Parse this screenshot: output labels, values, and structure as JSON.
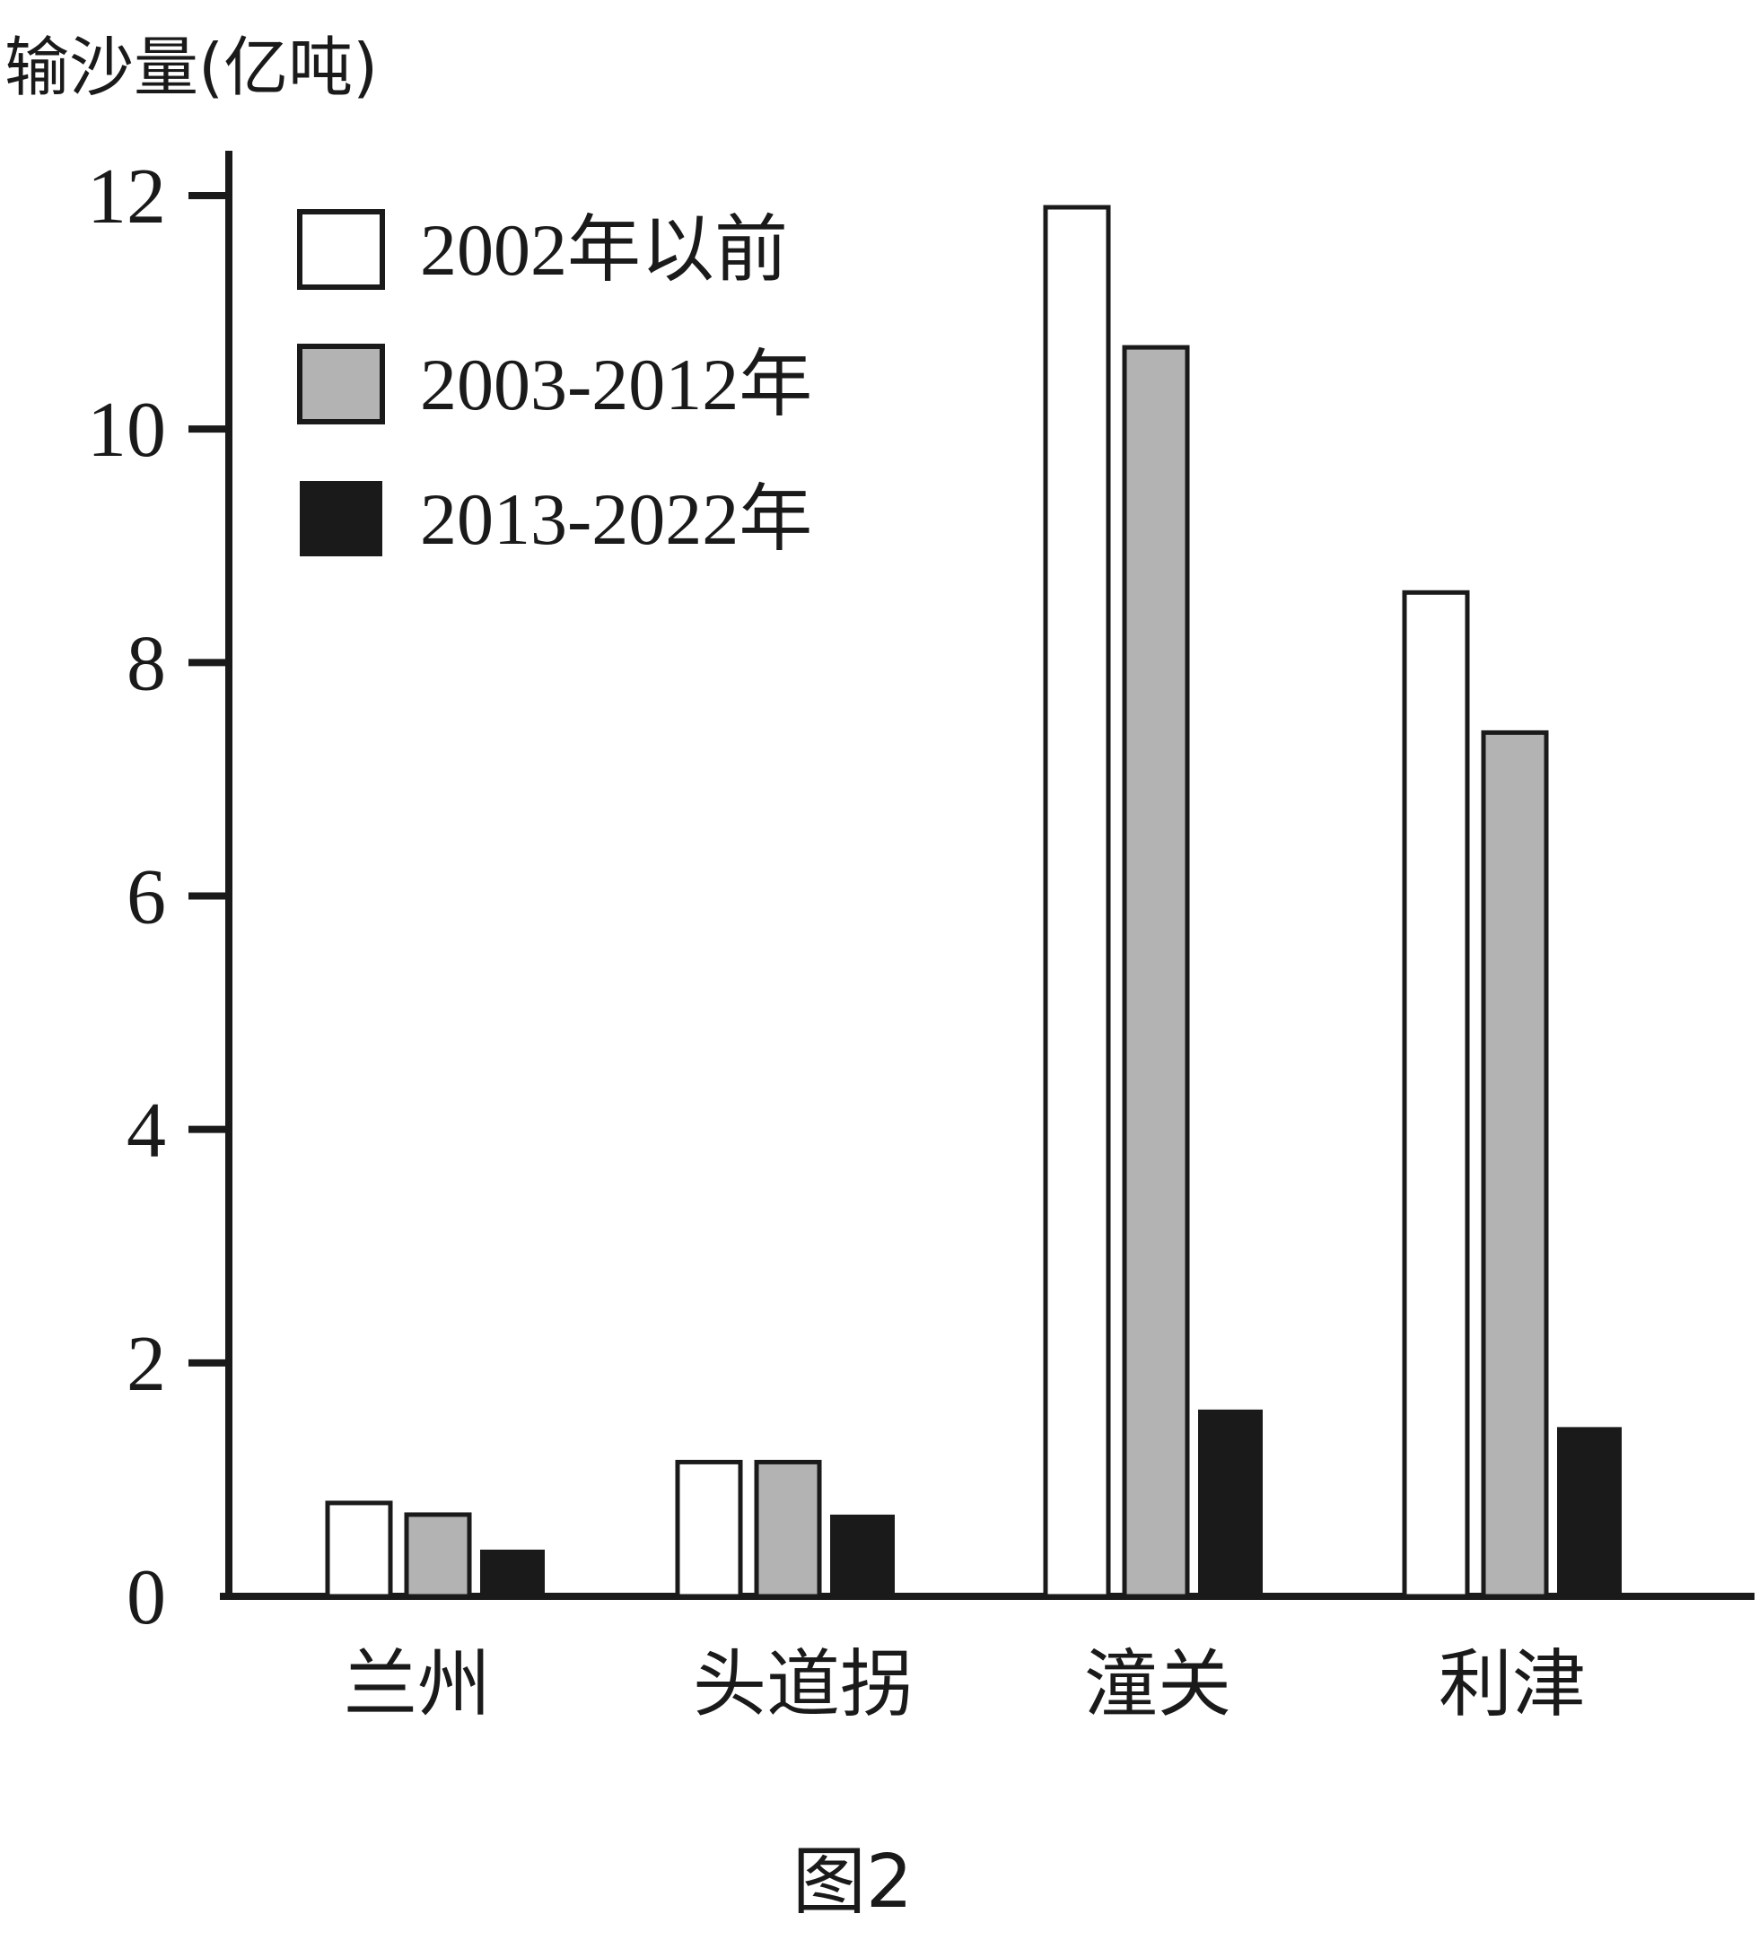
{
  "chart_data": {
    "type": "bar",
    "ylabel": "输沙量(亿吨)",
    "xlabel": "",
    "caption": "图2",
    "ylim": [
      0,
      12
    ],
    "yticks": [
      0,
      2,
      4,
      6,
      8,
      10,
      12
    ],
    "ytick_labels": [
      "0",
      "2",
      "4",
      "6",
      "8",
      "10",
      "12"
    ],
    "categories": [
      "兰州",
      "头道拐",
      "潼关",
      "利津"
    ],
    "series": [
      {
        "name": "2002年以前",
        "color": "#ffffff",
        "values": [
          0.8,
          1.15,
          11.9,
          8.6
        ]
      },
      {
        "name": "2003-2012年",
        "color": "#b3b3b3",
        "values": [
          0.7,
          1.15,
          10.7,
          7.4
        ]
      },
      {
        "name": "2013-2022年",
        "color": "#1a1a1a",
        "values": [
          0.4,
          0.7,
          1.6,
          1.45
        ]
      }
    ],
    "legend_position": "top-left",
    "grid": false
  }
}
